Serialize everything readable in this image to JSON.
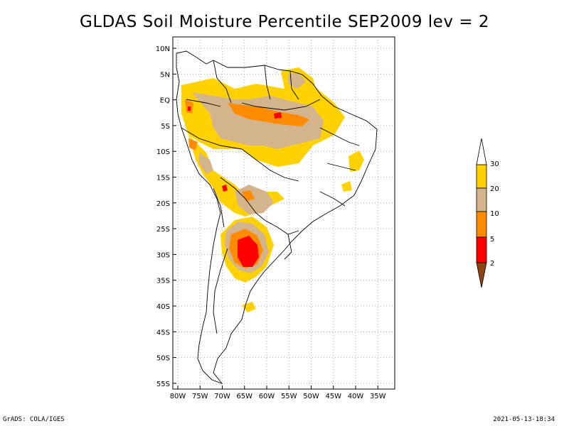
{
  "title": "GLDAS Soil Moisture Percentile SEP2009 lev = 2",
  "footer": {
    "left": "GrADS: COLA/IGES",
    "right": "2021-05-13-18:34"
  },
  "axes": {
    "lat_labels": [
      "10N",
      "5N",
      "EQ",
      "5S",
      "10S",
      "15S",
      "20S",
      "25S",
      "30S",
      "35S",
      "40S",
      "45S",
      "50S",
      "55S"
    ],
    "lon_labels": [
      "80W",
      "75W",
      "70W",
      "65W",
      "60W",
      "55W",
      "50W",
      "45W",
      "40W",
      "35W"
    ],
    "lat_values": [
      10,
      5,
      0,
      -5,
      -10,
      -15,
      -20,
      -25,
      -30,
      -35,
      -40,
      -45,
      -50,
      -55
    ],
    "lon_values": [
      -80,
      -75,
      -70,
      -65,
      -60,
      -55,
      -50,
      -45,
      -40,
      -35
    ]
  },
  "legend": {
    "labels": [
      "30",
      "20",
      "10",
      "5",
      "2"
    ],
    "colors": {
      "above30": "#ffffff",
      "c20_30": "#ffd100",
      "c10_20": "#d4b48c",
      "c5_10": "#ff8c00",
      "c2_5": "#ff0000",
      "below2": "#8b4513"
    }
  }
}
